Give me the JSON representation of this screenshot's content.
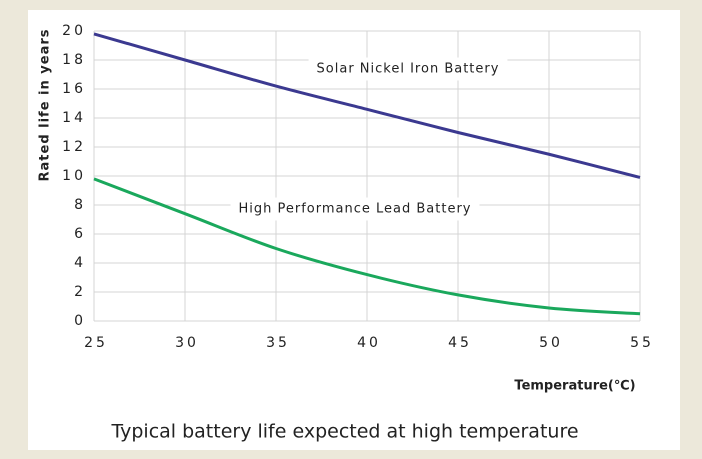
{
  "chart_data": {
    "type": "line",
    "title": "Typical battery life expected at high temperature",
    "x_label": "Temperature(℃)",
    "y_label": "Rated life in years",
    "x": [
      25,
      30,
      35,
      40,
      45,
      50,
      55
    ],
    "series": [
      {
        "name": "Solar Nickel Iron Battery",
        "color": "#3b3990",
        "values": [
          19.8,
          18,
          16.2,
          14.6,
          13,
          11.5,
          9.9
        ]
      },
      {
        "name": "High Performance Lead Battery",
        "color": "#1aa85c",
        "values": [
          9.8,
          7.4,
          5,
          3.2,
          1.8,
          0.9,
          0.5
        ]
      }
    ],
    "xlim": [
      25,
      55
    ],
    "xticks": [
      25,
      30,
      35,
      40,
      45,
      50,
      55
    ],
    "ylim": [
      0,
      20
    ],
    "yticks": [
      0,
      2,
      4,
      6,
      8,
      10,
      12,
      14,
      16,
      18,
      20
    ],
    "grid": true
  }
}
